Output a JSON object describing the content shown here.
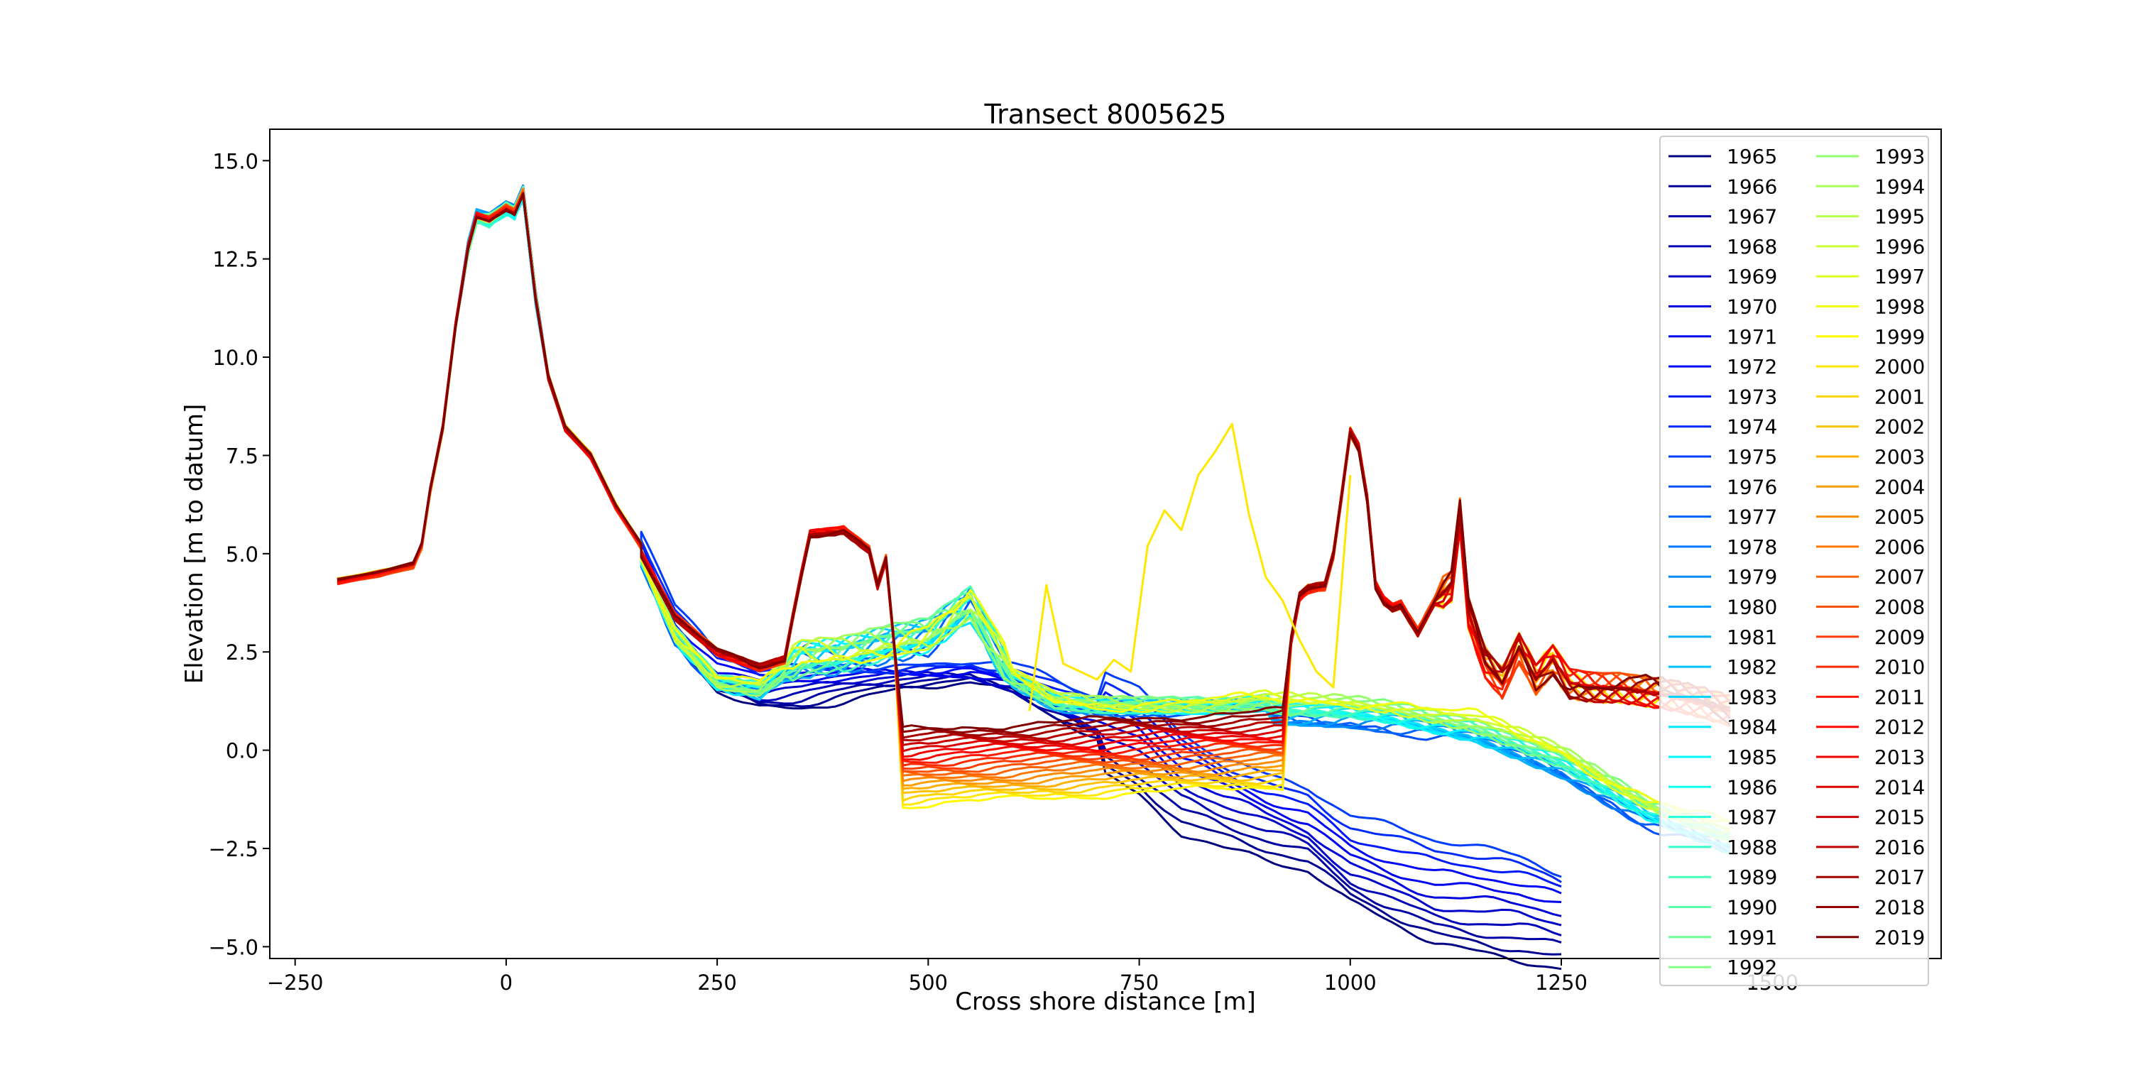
{
  "chart_data": {
    "type": "line",
    "title": "Transect 8005625",
    "xlabel": "Cross shore distance [m]",
    "ylabel": "Elevation [m to datum]",
    "xlim": [
      -280,
      1700
    ],
    "ylim": [
      -5.3,
      15.8
    ],
    "xticks": [
      -250,
      0,
      250,
      500,
      750,
      1000,
      1250,
      1500
    ],
    "xtick_labels": [
      "−250",
      "0",
      "250",
      "500",
      "750",
      "1000",
      "1250",
      "1500"
    ],
    "yticks": [
      -5.0,
      -2.5,
      0.0,
      2.5,
      5.0,
      7.5,
      10.0,
      12.5,
      15.0
    ],
    "ytick_labels": [
      "−5.0",
      "−2.5",
      "0.0",
      "2.5",
      "5.0",
      "7.5",
      "10.0",
      "12.5",
      "15.0"
    ],
    "grid": false,
    "legend": {
      "placement": "top-right",
      "columns": 2
    },
    "colormap": "jet",
    "years": [
      1965,
      1966,
      1967,
      1968,
      1969,
      1970,
      1971,
      1972,
      1973,
      1974,
      1975,
      1976,
      1977,
      1978,
      1979,
      1980,
      1981,
      1982,
      1983,
      1984,
      1985,
      1986,
      1987,
      1988,
      1989,
      1990,
      1991,
      1992,
      1993,
      1994,
      1995,
      1996,
      1997,
      1998,
      1999,
      2000,
      2001,
      2002,
      2003,
      2004,
      2005,
      2006,
      2007,
      2008,
      2009,
      2010,
      2011,
      2012,
      2013,
      2014,
      2015,
      2016,
      2017,
      2018,
      2019
    ],
    "profiles": {
      "dune": {
        "x": [
          -200,
          -150,
          -110,
          -100,
          -90,
          -75,
          -60,
          -45,
          -35,
          -20,
          0,
          10,
          20,
          35,
          50,
          70,
          100,
          130,
          160
        ],
        "y": [
          4.3,
          4.5,
          4.7,
          5.2,
          6.6,
          8.2,
          10.8,
          12.8,
          13.6,
          13.5,
          13.8,
          13.7,
          14.2,
          11.5,
          9.5,
          8.2,
          7.5,
          6.2,
          5.2
        ]
      },
      "early": {
        "x": [
          160,
          200,
          250,
          300,
          350,
          400,
          450,
          500,
          550,
          600,
          650,
          700,
          750,
          800,
          850,
          900,
          950,
          1000,
          1050,
          1100,
          1150,
          1200,
          1250
        ],
        "y": [
          5.2,
          3.2,
          2.0,
          1.6,
          1.6,
          1.7,
          1.8,
          1.9,
          2.0,
          1.8,
          1.3,
          0.8,
          0.2,
          -0.8,
          -1.3,
          -1.7,
          -2.0,
          -2.8,
          -3.2,
          -3.6,
          -3.8,
          -4.0,
          -4.3
        ]
      },
      "middle": {
        "x": [
          160,
          200,
          250,
          300,
          350,
          400,
          450,
          500,
          550,
          600,
          650,
          700,
          750,
          800,
          850,
          900,
          950,
          1000,
          1050,
          1100,
          1150,
          1200,
          1250,
          1300,
          1350,
          1400,
          1450
        ],
        "y": [
          5.0,
          3.0,
          1.8,
          1.6,
          2.4,
          2.5,
          2.8,
          3.0,
          3.8,
          1.9,
          1.3,
          1.2,
          1.2,
          1.2,
          1.2,
          1.3,
          1.3,
          1.3,
          1.2,
          1.0,
          0.8,
          0.4,
          0.0,
          -0.6,
          -1.2,
          -1.6,
          -2.0
        ]
      },
      "late": {
        "x": [
          160,
          200,
          250,
          300,
          330,
          345,
          360,
          400,
          430,
          440,
          455,
          465,
          920,
          935,
          950,
          975,
          990,
          1000,
          1015,
          1030,
          1045,
          1060,
          1080,
          1100,
          1120,
          1130,
          1140,
          1160,
          1180,
          1200,
          1220,
          1240,
          1260,
          1290,
          1320,
          1350,
          1380,
          1400,
          1450
        ],
        "y": [
          5.0,
          3.4,
          2.5,
          2.1,
          2.3,
          4.0,
          5.5,
          5.6,
          5.1,
          4.2,
          5.2,
          0.0,
          0.8,
          3.8,
          4.1,
          4.2,
          6.5,
          8.1,
          7.5,
          4.2,
          3.6,
          3.7,
          3.0,
          3.8,
          4.2,
          6.0,
          3.5,
          2.2,
          1.7,
          2.6,
          1.8,
          2.3,
          1.7,
          1.6,
          1.6,
          1.5,
          1.4,
          1.3,
          1.0
        ]
      },
      "anomaly_2000": {
        "x": [
          620,
          640,
          660,
          680,
          700,
          720,
          740,
          760,
          780,
          800,
          820,
          840,
          860,
          880,
          900,
          920,
          940,
          960,
          980,
          1000
        ],
        "y": [
          1.0,
          4.2,
          2.2,
          2.0,
          1.8,
          2.3,
          2.0,
          5.2,
          6.1,
          5.6,
          7.0,
          7.6,
          8.3,
          6.0,
          4.4,
          3.8,
          2.8,
          2.0,
          1.6,
          7.0
        ]
      }
    }
  }
}
